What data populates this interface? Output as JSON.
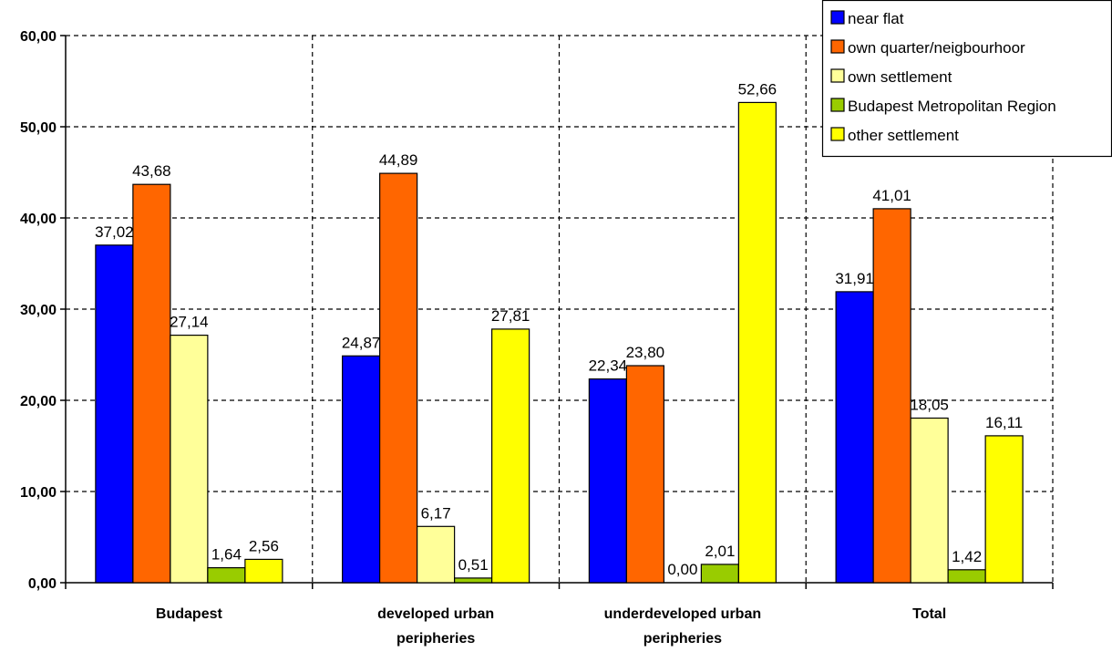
{
  "chart_data": {
    "type": "bar",
    "categories": [
      [
        "Budapest"
      ],
      [
        "developed urban",
        "peripheries"
      ],
      [
        "underdeveloped urban",
        "peripheries"
      ],
      [
        "Total"
      ]
    ],
    "series": [
      {
        "name": "near flat",
        "color": "#0000FF",
        "values": [
          37.02,
          24.87,
          22.34,
          31.91
        ],
        "labels": [
          "37,02",
          "24,87",
          "22,34",
          "31,91"
        ]
      },
      {
        "name": "own quarter/neigbourhoor",
        "color": "#FF6600",
        "values": [
          43.68,
          44.89,
          23.8,
          41.01
        ],
        "labels": [
          "43,68",
          "44,89",
          "23,80",
          "41,01"
        ]
      },
      {
        "name": "own settlement",
        "color": "#FFFF99",
        "values": [
          27.14,
          6.17,
          0.0,
          18.05
        ],
        "labels": [
          "27,14",
          "6,17",
          "0,00",
          "18,05"
        ]
      },
      {
        "name": "Budapest Metropolitan Region",
        "color": "#99CC00",
        "values": [
          1.64,
          0.51,
          2.01,
          1.42
        ],
        "labels": [
          "1,64",
          "0,51",
          "2,01",
          "1,42"
        ]
      },
      {
        "name": "other settlement",
        "color": "#FFFF00",
        "values": [
          2.56,
          27.81,
          52.66,
          16.11
        ],
        "labels": [
          "2,56",
          "27,81",
          "52,66",
          "16,11"
        ]
      }
    ],
    "yticks": [
      {
        "value": 0,
        "label": "0,00"
      },
      {
        "value": 10,
        "label": "10,00"
      },
      {
        "value": 20,
        "label": "20,00"
      },
      {
        "value": 30,
        "label": "30,00"
      },
      {
        "value": 40,
        "label": "40,00"
      },
      {
        "value": 50,
        "label": "50,00"
      },
      {
        "value": 60,
        "label": "60,00"
      }
    ],
    "ylim": [
      0,
      60
    ],
    "grid": true,
    "legend_position": "top-right"
  }
}
